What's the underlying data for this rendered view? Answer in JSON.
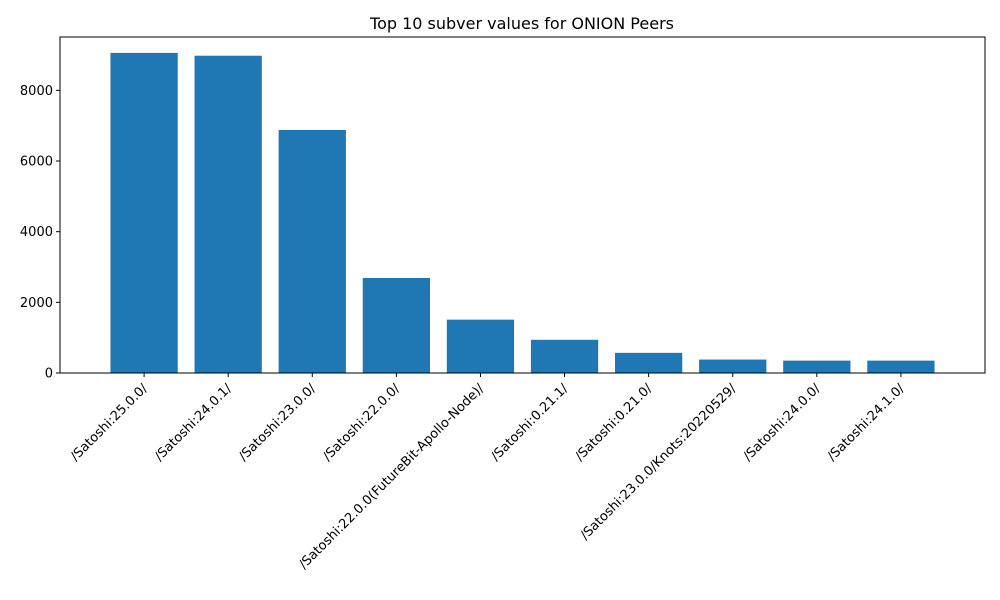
{
  "chart_data": {
    "type": "bar",
    "title": "Top 10 subver values for ONION Peers",
    "xlabel": "",
    "ylabel": "",
    "categories": [
      "/Satoshi:25.0.0/",
      "/Satoshi:24.0.1/",
      "/Satoshi:23.0.0/",
      "/Satoshi:22.0.0/",
      "/Satoshi:22.0.0(FutureBit-Apollo-Node)/",
      "/Satoshi:0.21.1/",
      "/Satoshi:0.21.0/",
      "/Satoshi:23.0.0/Knots:20220529/",
      "/Satoshi:24.0.0/",
      "/Satoshi:24.1.0/"
    ],
    "values": [
      9060,
      8980,
      6880,
      2690,
      1510,
      940,
      570,
      380,
      350,
      350
    ],
    "ylim": [
      0,
      9510
    ],
    "yticks": [
      0,
      2000,
      4000,
      6000,
      8000
    ],
    "ytick_labels": [
      "0",
      "2000",
      "4000",
      "6000",
      "8000"
    ],
    "grid": false,
    "bar_color": "#1f77b4"
  }
}
